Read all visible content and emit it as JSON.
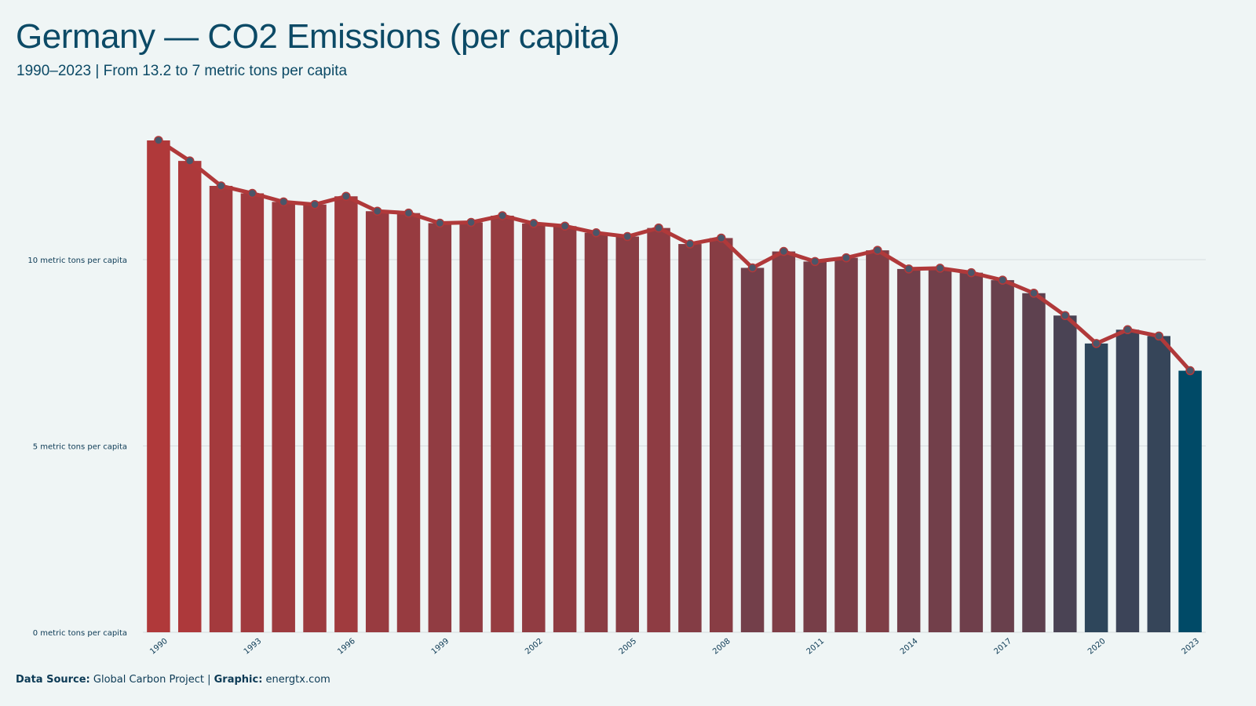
{
  "header": {
    "title": "Germany — CO2 Emissions (per capita)",
    "subtitle": "1990–2023 | From 13.2 to 7 metric tons per capita"
  },
  "footer": {
    "source_label": "Data Source:",
    "source_value": "Global Carbon Project",
    "separator": "|",
    "graphic_label": "Graphic:",
    "graphic_value": "energtx.com"
  },
  "colors": {
    "background": "#eff5f5",
    "bar_start": "#b0393a",
    "bar_end": "#004a67",
    "line": "#b0393a",
    "marker_fill": "#4a5669",
    "gridline": "#d7dde0",
    "text": "#0c4a66"
  },
  "chart_data": {
    "type": "bar",
    "title": "Germany — CO2 Emissions (per capita)",
    "subtitle": "1990–2023 | From 13.2 to 7 metric tons per capita",
    "xlabel": "",
    "ylabel": "",
    "ylim": [
      0,
      14
    ],
    "yticks": [
      0,
      5,
      10
    ],
    "ytick_labels": [
      "0 metric tons per capita",
      "5 metric tons per capita",
      "10 metric tons per capita"
    ],
    "xtick_labels": [
      "1990",
      "1993",
      "1996",
      "1999",
      "2002",
      "2005",
      "2008",
      "2011",
      "2014",
      "2017",
      "2020",
      "2023"
    ],
    "grid": true,
    "categories": [
      "1990",
      "1991",
      "1992",
      "1993",
      "1994",
      "1995",
      "1996",
      "1997",
      "1998",
      "1999",
      "2000",
      "2001",
      "2002",
      "2003",
      "2004",
      "2005",
      "2006",
      "2007",
      "2008",
      "2009",
      "2010",
      "2011",
      "2012",
      "2013",
      "2014",
      "2015",
      "2016",
      "2017",
      "2018",
      "2019",
      "2020",
      "2021",
      "2022",
      "2023"
    ],
    "values": [
      13.2,
      12.65,
      11.98,
      11.78,
      11.55,
      11.48,
      11.7,
      11.3,
      11.25,
      10.98,
      11.0,
      11.18,
      10.97,
      10.9,
      10.72,
      10.62,
      10.85,
      10.42,
      10.58,
      9.78,
      10.22,
      9.95,
      10.05,
      10.25,
      9.75,
      9.77,
      9.65,
      9.45,
      9.1,
      8.5,
      7.75,
      8.12,
      7.95,
      7.02
    ],
    "overlay": "line with markers on same values"
  }
}
